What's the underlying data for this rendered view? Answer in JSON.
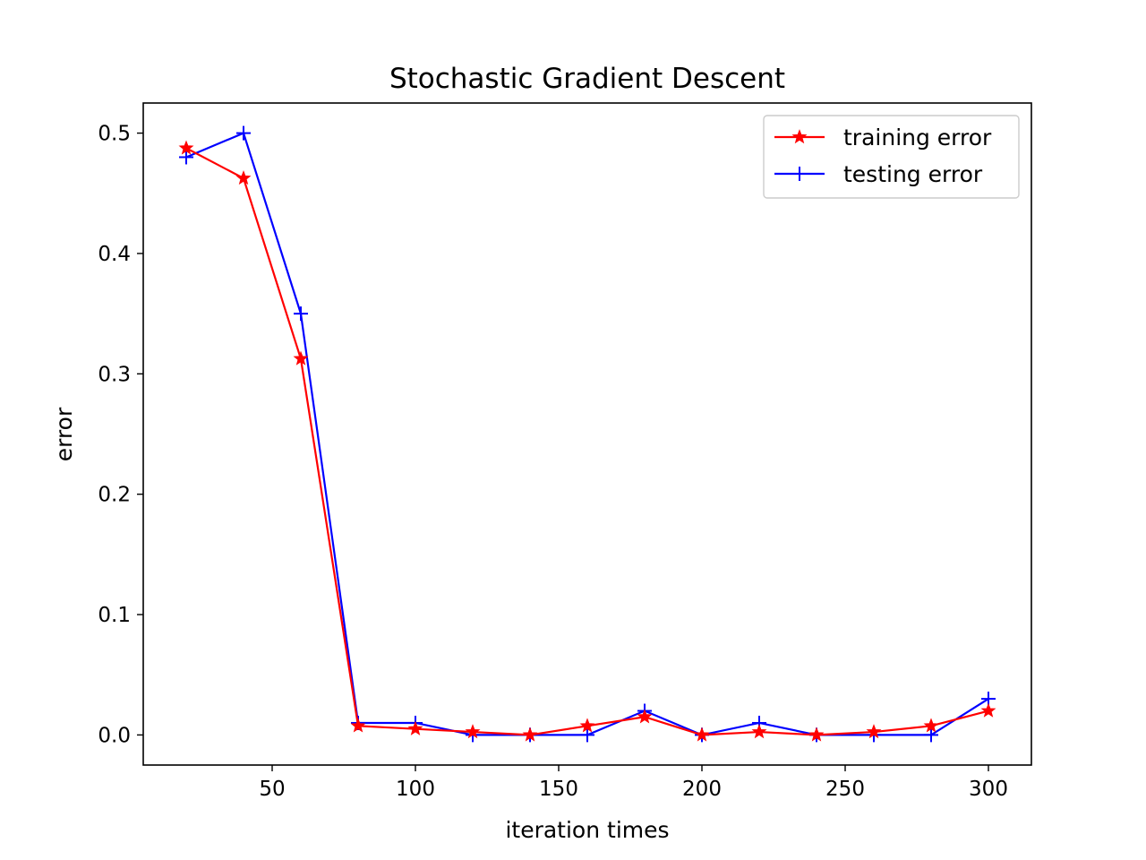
{
  "chart_data": {
    "type": "line",
    "title": "Stochastic Gradient Descent",
    "xlabel": "iteration times",
    "ylabel": "error",
    "xlim": [
      5,
      315
    ],
    "ylim": [
      -0.025,
      0.525
    ],
    "xticks": [
      50,
      100,
      150,
      200,
      250,
      300
    ],
    "xtick_labels": [
      "50",
      "100",
      "150",
      "200",
      "250",
      "300"
    ],
    "yticks": [
      0.0,
      0.1,
      0.2,
      0.3,
      0.4,
      0.5
    ],
    "ytick_labels": [
      "0.0",
      "0.1",
      "0.2",
      "0.3",
      "0.4",
      "0.5"
    ],
    "grid": false,
    "legend_position": "top-right",
    "x": [
      20,
      40,
      60,
      80,
      100,
      120,
      140,
      160,
      180,
      200,
      220,
      240,
      260,
      280,
      300
    ],
    "series": [
      {
        "name": "training error",
        "color": "#ff0000",
        "marker": "star",
        "values": [
          0.4875,
          0.4625,
          0.3125,
          0.0075,
          0.005,
          0.0025,
          0.0,
          0.0075,
          0.015,
          0.0,
          0.0025,
          0.0,
          0.0025,
          0.0075,
          0.02
        ]
      },
      {
        "name": "testing error",
        "color": "#0000ff",
        "marker": "plus",
        "values": [
          0.48,
          0.5,
          0.35,
          0.01,
          0.01,
          0.0,
          0.0,
          0.0,
          0.02,
          0.0,
          0.01,
          0.0,
          0.0,
          0.0,
          0.03
        ]
      }
    ]
  }
}
